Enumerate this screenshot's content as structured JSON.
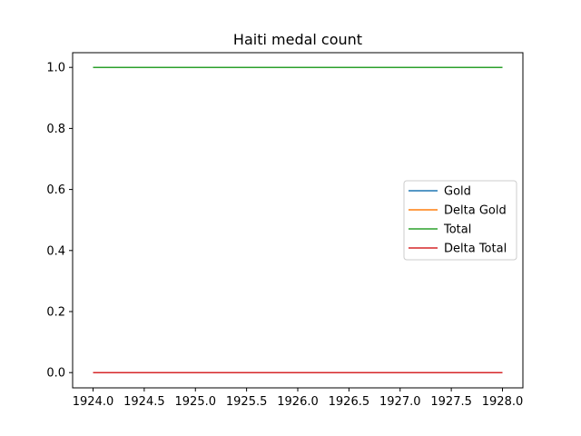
{
  "chart_data": {
    "type": "line",
    "title": "Haiti medal count",
    "xlabel": "",
    "ylabel": "",
    "x": [
      1924,
      1928
    ],
    "xlim": [
      1924.0,
      1928.0
    ],
    "ylim": [
      0.0,
      1.0
    ],
    "xticks": [
      "1924.0",
      "1924.5",
      "1925.0",
      "1925.5",
      "1926.0",
      "1926.5",
      "1927.0",
      "1927.5",
      "1928.0"
    ],
    "yticks": [
      "0.0",
      "0.2",
      "0.4",
      "0.6",
      "0.8",
      "1.0"
    ],
    "grid": false,
    "legend_position": "center-right",
    "series": [
      {
        "name": "Gold",
        "values": [
          0,
          0
        ],
        "color": "#1f77b4"
      },
      {
        "name": "Delta Gold",
        "values": [
          0,
          0
        ],
        "color": "#ff7f0e"
      },
      {
        "name": "Total",
        "values": [
          1,
          1
        ],
        "color": "#2ca02c"
      },
      {
        "name": "Delta Total",
        "values": [
          0,
          0
        ],
        "color": "#d62728"
      }
    ]
  }
}
